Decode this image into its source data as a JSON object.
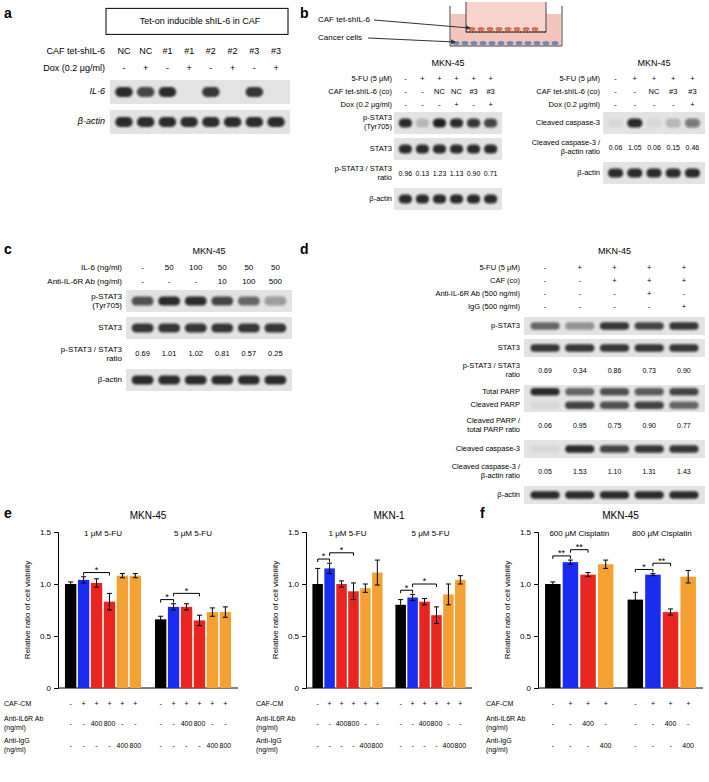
{
  "figure": {
    "panel_labels": [
      "a",
      "b",
      "c",
      "d",
      "e",
      "f"
    ]
  },
  "schematic": {
    "labels": [
      "CAF tet-shIL-6",
      "Cancer cells"
    ]
  },
  "blots": [
    {
      "title": "Tet-on inducible shIL-6 in CAF",
      "headers": [
        {
          "label": [
            "CAF tet-shIL-6"
          ],
          "values": [
            "NC",
            "NC",
            "#1",
            "#1",
            "#2",
            "#2",
            "#3",
            "#3"
          ]
        },
        {
          "label": [
            "Dox (0.2 μg/ml)"
          ],
          "values": [
            "-",
            "+",
            "-",
            "+",
            "-",
            "+",
            "-",
            "+"
          ]
        }
      ],
      "rows": [
        {
          "label": [
            "IL-6"
          ],
          "bands": [
            [
              0.9,
              0.75,
              0.9,
              0,
              0.85,
              0,
              0.85,
              0
            ]
          ]
        },
        {
          "label": [
            "β-actin"
          ],
          "bands": [
            [
              0.9,
              0.9,
              0.9,
              0.9,
              0.9,
              0.9,
              0.9,
              0.9
            ]
          ]
        }
      ]
    },
    {
      "title": "MKN-45",
      "headers": [
        {
          "label": [
            "5-FU (5 μM)"
          ],
          "values": [
            "-",
            "+",
            "+",
            "+",
            "+",
            "+"
          ]
        },
        {
          "label": [
            "CAF tet-shIL-6 (co)"
          ],
          "values": [
            "-",
            "-",
            "NC",
            "NC",
            "#3",
            "#3"
          ]
        },
        {
          "label": [
            "Dox (0.2 μg/ml)"
          ],
          "values": [
            "-",
            "-",
            "-",
            "+",
            "-",
            "+"
          ]
        }
      ],
      "rows": [
        {
          "label": [
            "p-STAT3",
            "(Tyr705)"
          ],
          "bands": [
            [
              0.9,
              0.2,
              0.95,
              0.9,
              0.85,
              0.75
            ]
          ]
        },
        {
          "label": [
            "STAT3"
          ],
          "bands": [
            [
              0.9,
              0.9,
              0.9,
              0.9,
              0.9,
              0.9
            ]
          ]
        },
        {
          "label": [
            "p-STAT3 / STAT3",
            "ratio"
          ],
          "ratios": [
            "0.96",
            "0.13",
            "1.23",
            "1.13",
            "0.90",
            "0.71"
          ]
        },
        {
          "label": [
            "β-actin"
          ],
          "bands": [
            [
              0.9,
              0.9,
              0.9,
              0.9,
              0.9,
              0.9
            ]
          ]
        }
      ]
    },
    {
      "title": "MKN-45",
      "headers": [
        {
          "label": [
            "5-FU (5 μM)"
          ],
          "values": [
            "-",
            "+",
            "+",
            "+",
            "+"
          ]
        },
        {
          "label": [
            "CAF tet-shIL-6 (co)"
          ],
          "values": [
            "-",
            "-",
            "NC",
            "#3",
            "#3"
          ]
        },
        {
          "label": [
            "Dox (0.2 μg/ml)"
          ],
          "values": [
            "-",
            "-",
            "-",
            "-",
            "+"
          ]
        }
      ],
      "rows": [
        {
          "label": [
            "Cleaved caspase-3"
          ],
          "bands": [
            [
              0.05,
              0.9,
              0.05,
              0.2,
              0.5
            ]
          ]
        },
        {
          "label": [
            "Cleaved caspase-3 /",
            "β-actin ratio"
          ],
          "ratios": [
            "0.06",
            "1.05",
            "0.06",
            "0.15",
            "0.46"
          ]
        },
        {
          "label": [
            "β-actin"
          ],
          "bands": [
            [
              0.9,
              0.9,
              0.9,
              0.9,
              0.9
            ]
          ]
        }
      ]
    },
    {
      "title": "MKN-45",
      "headers": [
        {
          "label": [
            "IL-6 (ng/ml)"
          ],
          "values": [
            "-",
            "50",
            "100",
            "50",
            "50",
            "50"
          ]
        },
        {
          "label": [
            "Anti-IL-6R Ab (ng/ml)"
          ],
          "values": [
            "-",
            "-",
            "-",
            "10",
            "100",
            "500"
          ]
        }
      ],
      "rows": [
        {
          "label": [
            "p-STAT3",
            "(Tyr705)"
          ],
          "bands": [
            [
              0.7,
              0.9,
              0.9,
              0.75,
              0.6,
              0.35
            ]
          ]
        },
        {
          "label": [
            "STAT3"
          ],
          "bands": [
            [
              0.85,
              0.85,
              0.85,
              0.85,
              0.85,
              0.85
            ]
          ]
        },
        {
          "label": [
            "p-STAT3 / STAT3",
            "ratio"
          ],
          "ratios": [
            "0.69",
            "1.01",
            "1.02",
            "0.81",
            "0.57",
            "0.25"
          ]
        },
        {
          "label": [
            "β-actin"
          ],
          "bands": [
            [
              0.9,
              0.9,
              0.9,
              0.9,
              0.9,
              0.9
            ]
          ]
        }
      ]
    },
    {
      "title": "MKN-45",
      "headers": [
        {
          "label": [
            "5-FU (5 μM)"
          ],
          "values": [
            "-",
            "+",
            "+",
            "+",
            "+"
          ]
        },
        {
          "label": [
            "CAF (co)"
          ],
          "values": [
            "-",
            "-",
            "+",
            "+",
            "+"
          ]
        },
        {
          "label": [
            "Anti-IL-6R Ab (500 ng/ml)"
          ],
          "values": [
            "-",
            "-",
            "-",
            "+",
            "-"
          ]
        },
        {
          "label": [
            "IgG (500 ng/ml)"
          ],
          "values": [
            "-",
            "-",
            "-",
            "-",
            "+"
          ]
        }
      ],
      "rows": [
        {
          "label": [
            "p-STAT3"
          ],
          "bands": [
            [
              0.6,
              0.4,
              0.85,
              0.75,
              0.85
            ]
          ]
        },
        {
          "label": [
            "STAT3"
          ],
          "bands": [
            [
              0.85,
              0.85,
              0.85,
              0.85,
              0.85
            ]
          ]
        },
        {
          "label": [
            "p-STAT3 / STAT3",
            "ratio"
          ],
          "ratios": [
            "0.69",
            "0.34",
            "0.86",
            "0.73",
            "0.90"
          ]
        },
        {
          "label": [
            "Total PARP",
            "Cleaved PARP"
          ],
          "bands": [
            [
              0.9,
              0.6,
              0.7,
              0.65,
              0.75
            ],
            [
              0.05,
              0.8,
              0.7,
              0.8,
              0.6
            ]
          ]
        },
        {
          "label": [
            "Cleaved PARP /",
            "total PARP ratio"
          ],
          "ratios": [
            "0.06",
            "0.95",
            "0.75",
            "0.90",
            "0.77"
          ]
        },
        {
          "label": [
            "Cleaved caspase-3"
          ],
          "bands": [
            [
              0.05,
              0.9,
              0.75,
              0.85,
              0.85
            ]
          ]
        },
        {
          "label": [
            "Cleaved caspase-3 /",
            "β-actin ratio"
          ],
          "ratios": [
            "0.05",
            "1.53",
            "1.10",
            "1.31",
            "1.43"
          ]
        },
        {
          "label": [
            "β-actin"
          ],
          "bands": [
            [
              0.9,
              0.9,
              0.9,
              0.9,
              0.9
            ]
          ]
        }
      ]
    }
  ],
  "chart_data": [
    {
      "type": "bar",
      "title": "MKN-45",
      "y_label": "Relative ratio of cell viability",
      "categories": [
        "1 μM 5-FU",
        "5 μM 5-FU"
      ],
      "ylim": [
        0,
        1.5
      ],
      "yticks": [
        0,
        0.5,
        {
          "value": 1,
          "label": "1.0"
        },
        1.5
      ],
      "series": [
        {
          "color": "#000000",
          "values": [
            1.0,
            0.66
          ],
          "errors": [
            0.02,
            0.03
          ]
        },
        {
          "color": "#1a2cf0",
          "values": [
            1.04,
            0.78
          ],
          "errors": [
            0.03,
            0.03
          ]
        },
        {
          "color": "#e8251f",
          "values": [
            1.01,
            0.78
          ],
          "errors": [
            0.04,
            0.03
          ]
        },
        {
          "color": "#e8251f",
          "values": [
            0.83,
            0.65
          ],
          "errors": [
            0.08,
            0.05
          ]
        },
        {
          "color": "#f5a033",
          "values": [
            1.08,
            0.73
          ],
          "errors": [
            0.02,
            0.04
          ]
        },
        {
          "color": "#f5a033",
          "values": [
            1.08,
            0.73
          ],
          "errors": [
            0.02,
            0.05
          ]
        }
      ],
      "conditions": [
        {
          "label": [
            "CAF-CM"
          ],
          "values": [
            "-",
            "+",
            "+",
            "+",
            "+",
            "+"
          ]
        },
        {
          "label": [
            "Anti-IL6R Ab",
            "(ng/ml)"
          ],
          "values": [
            "-",
            "-",
            "400",
            "800",
            "-",
            "-"
          ]
        },
        {
          "label": [
            "Anti-IgG",
            "(ng/ml)"
          ],
          "values": [
            "-",
            "-",
            "-",
            "-",
            "400",
            "800"
          ]
        }
      ],
      "significance": [
        {
          "category": 0,
          "from": 1,
          "to": 3,
          "label": "*"
        },
        {
          "category": 1,
          "from": 0,
          "to": 1,
          "label": "*"
        },
        {
          "category": 1,
          "from": 1,
          "to": 3,
          "label": "*"
        }
      ]
    },
    {
      "type": "bar",
      "title": "MKN-1",
      "y_label": "Relative ratio of cell viability",
      "categories": [
        "1 μM 5-FU",
        "5 μM 5-FU"
      ],
      "ylim": [
        0,
        1.5
      ],
      "yticks": [
        0,
        0.5,
        {
          "value": 1,
          "label": "1.0"
        },
        1.5
      ],
      "series": [
        {
          "color": "#000000",
          "values": [
            1.0,
            0.8
          ],
          "errors": [
            0.15,
            0.05
          ]
        },
        {
          "color": "#1a2cf0",
          "values": [
            1.15,
            0.87
          ],
          "errors": [
            0.05,
            0.03
          ]
        },
        {
          "color": "#e8251f",
          "values": [
            1.0,
            0.83
          ],
          "errors": [
            0.03,
            0.03
          ]
        },
        {
          "color": "#e8251f",
          "values": [
            0.93,
            0.7
          ],
          "errors": [
            0.08,
            0.08
          ]
        },
        {
          "color": "#f5a033",
          "values": [
            0.96,
            0.9
          ],
          "errors": [
            0.04,
            0.1
          ]
        },
        {
          "color": "#f5a033",
          "values": [
            1.11,
            1.04
          ],
          "errors": [
            0.12,
            0.04
          ]
        }
      ],
      "conditions": [
        {
          "label": [
            "CAF-CM"
          ],
          "values": [
            "-",
            "+",
            "+",
            "+",
            "+",
            "+"
          ]
        },
        {
          "label": [
            "Anti-IL6R Ab",
            "(ng/ml)"
          ],
          "values": [
            "-",
            "-",
            "400",
            "800",
            "-",
            "-"
          ]
        },
        {
          "label": [
            "Anti-IgG",
            "(ng/ml)"
          ],
          "values": [
            "-",
            "-",
            "-",
            "-",
            "400",
            "800"
          ]
        }
      ],
      "significance": [
        {
          "category": 0,
          "from": 0,
          "to": 1,
          "label": "*"
        },
        {
          "category": 0,
          "from": 1,
          "to": 3,
          "label": "*"
        },
        {
          "category": 1,
          "from": 0,
          "to": 1,
          "label": "*"
        },
        {
          "category": 1,
          "from": 1,
          "to": 3,
          "label": "*"
        }
      ]
    },
    {
      "type": "bar",
      "title": "MKN-45",
      "y_label": "Relative ratio of cell viability",
      "categories": [
        "600 μM Cisplatin",
        "800 μM Cisplatin"
      ],
      "ylim": [
        0,
        1.5
      ],
      "yticks": [
        0,
        0.5,
        {
          "value": 1,
          "label": "1.0"
        },
        1.5
      ],
      "series": [
        {
          "color": "#000000",
          "values": [
            1.0,
            0.85
          ],
          "errors": [
            0.02,
            0.07
          ]
        },
        {
          "color": "#1a2cf0",
          "values": [
            1.21,
            1.09
          ],
          "errors": [
            0.02,
            0.01
          ]
        },
        {
          "color": "#e8251f",
          "values": [
            1.09,
            0.73
          ],
          "errors": [
            0.02,
            0.03
          ]
        },
        {
          "color": "#f5a033",
          "values": [
            1.19,
            1.07
          ],
          "errors": [
            0.04,
            0.06
          ]
        }
      ],
      "conditions": [
        {
          "label": [
            "CAF-CM"
          ],
          "values": [
            "-",
            "+",
            "+",
            "+"
          ]
        },
        {
          "label": [
            "Anti-IL6R Ab",
            "(ng/ml)"
          ],
          "values": [
            "-",
            "-",
            "400",
            "-"
          ]
        },
        {
          "label": [
            "Anti-IgG",
            "(ng/ml)"
          ],
          "values": [
            "-",
            "-",
            "-",
            "400"
          ]
        }
      ],
      "significance": [
        {
          "category": 0,
          "from": 0,
          "to": 1,
          "label": "**"
        },
        {
          "category": 0,
          "from": 1,
          "to": 2,
          "label": "**"
        },
        {
          "category": 1,
          "from": 0,
          "to": 1,
          "label": "*"
        },
        {
          "category": 1,
          "from": 1,
          "to": 2,
          "label": "**"
        }
      ]
    }
  ]
}
